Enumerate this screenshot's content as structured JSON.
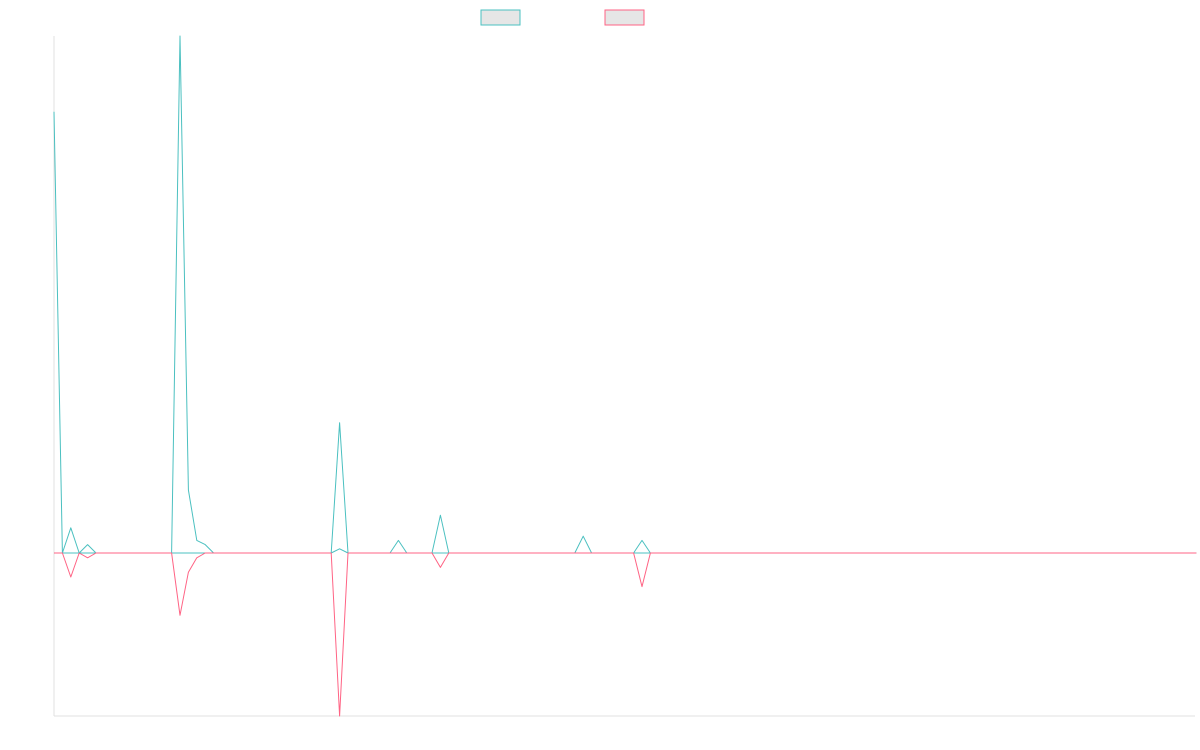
{
  "colors": {
    "series_a": "#4bc0c0",
    "series_b": "#ff6384",
    "legend_fill": "#e6e6e6",
    "axis": "#e0e0e0",
    "background": "#ffffff"
  },
  "chart_data": {
    "type": "line",
    "title": "",
    "xlabel": "",
    "ylabel": "",
    "grid": false,
    "legend_placement": "top",
    "xlim": [
      0,
      136
    ],
    "ylim": [
      -48,
      130
    ],
    "series": [
      {
        "values": [
          105,
          0,
          6,
          0,
          2,
          0,
          0,
          0,
          0,
          0,
          0,
          0,
          0,
          0,
          0,
          123,
          15,
          3,
          2,
          0,
          0,
          0,
          0,
          0,
          0,
          0,
          0,
          0,
          0,
          0,
          0,
          0,
          0,
          0,
          1,
          0,
          0,
          0,
          0,
          0,
          0,
          3,
          0,
          0,
          0,
          0,
          9,
          0,
          0,
          0,
          0,
          0,
          0,
          0,
          0,
          0,
          0,
          0,
          0,
          0,
          0,
          0,
          0,
          4,
          0,
          0,
          0,
          0,
          0,
          0,
          3,
          0,
          0,
          0,
          0,
          0,
          0,
          0,
          0,
          0,
          0,
          0,
          0,
          0,
          0,
          0,
          0,
          0,
          0,
          0,
          0,
          0,
          0,
          0,
          0,
          0,
          0,
          0,
          0,
          0,
          0,
          0,
          0,
          0,
          0,
          0,
          0,
          0,
          0,
          0,
          0,
          0,
          0,
          0,
          0,
          0,
          0,
          0,
          0,
          0,
          0,
          0,
          0,
          0,
          0,
          0,
          0,
          0,
          0,
          0,
          0,
          0,
          0,
          0,
          0,
          0,
          0
        ]
      },
      {
        "values": [
          0,
          0,
          0,
          0,
          0,
          0,
          0,
          0,
          0,
          0,
          0,
          0,
          0,
          0,
          0,
          0,
          0,
          0,
          0,
          0,
          0,
          0,
          0,
          0,
          0,
          0,
          0,
          0,
          0,
          0,
          0,
          0,
          0,
          0,
          31,
          0,
          0,
          0,
          0,
          0,
          0,
          0,
          0,
          0,
          0,
          0,
          0,
          0,
          0,
          0,
          0,
          0,
          0,
          0,
          0,
          0,
          0,
          0,
          0,
          0,
          0,
          0,
          0,
          0,
          0,
          0,
          0,
          0,
          0,
          0,
          0,
          0,
          0,
          0,
          0,
          0,
          0,
          0,
          0,
          0,
          0,
          0,
          0,
          0,
          0,
          0,
          0,
          0,
          0,
          0,
          0,
          0,
          0,
          0,
          0,
          0,
          0,
          0,
          0,
          0,
          0,
          0,
          0,
          0,
          0,
          0,
          0,
          0,
          0,
          0,
          0,
          0,
          0,
          0,
          0,
          0,
          0,
          0,
          0,
          0,
          0,
          0,
          0,
          0,
          0,
          0,
          0,
          0,
          0,
          0,
          0,
          0,
          0,
          0,
          0,
          0,
          0
        ]
      },
      {
        "values": [
          0,
          0,
          -5,
          0,
          -1,
          0,
          0,
          0,
          0,
          0,
          0,
          0,
          0,
          0,
          0,
          -13,
          -4,
          -1,
          0,
          0,
          0,
          0,
          0,
          0,
          0,
          0,
          0,
          0,
          0,
          0,
          0,
          0,
          0,
          0,
          -34,
          0,
          0,
          0,
          0,
          0,
          0,
          0,
          0,
          0,
          0,
          0,
          -3,
          0,
          0,
          0,
          0,
          0,
          0,
          0,
          0,
          0,
          0,
          0,
          0,
          0,
          0,
          0,
          0,
          0,
          0,
          0,
          0,
          0,
          0,
          0,
          -7,
          0,
          0,
          0,
          0,
          0,
          0,
          0,
          0,
          0,
          0,
          0,
          0,
          0,
          0,
          0,
          0,
          0,
          0,
          0,
          0,
          0,
          0,
          0,
          0,
          0,
          0,
          0,
          0,
          0,
          0,
          0,
          0,
          0,
          0,
          0,
          0,
          0,
          0,
          0,
          0,
          0,
          0,
          0,
          0,
          0,
          0,
          0,
          0,
          0,
          0,
          0,
          0,
          0,
          0,
          0,
          0,
          0,
          0,
          0,
          0,
          0,
          0,
          0,
          0,
          0,
          0
        ]
      }
    ]
  }
}
